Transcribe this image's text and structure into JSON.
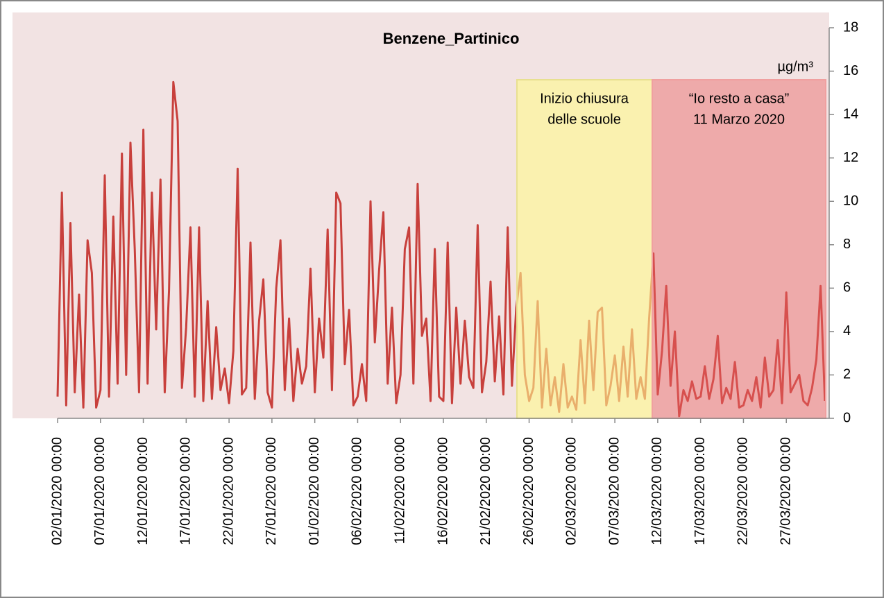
{
  "chart_data": {
    "type": "line",
    "title": "Benzene_Partinico",
    "y_label": "µg/m³",
    "color": "#c8403c",
    "annotations": [
      "Inizio chiusura",
      "delle scuole",
      "“Io resto a casa”",
      "11 Marzo 2020"
    ],
    "y_axis_side": "right",
    "grid": false,
    "ylim": [
      0,
      18
    ],
    "yticks": [
      0,
      2,
      4,
      6,
      8,
      10,
      12,
      14,
      16,
      18
    ],
    "categories": [
      "02/01/2020 00:00",
      null,
      null,
      null,
      null,
      null,
      null,
      null,
      null,
      null,
      "07/01/2020 00:00",
      null,
      null,
      null,
      null,
      null,
      null,
      null,
      null,
      null,
      "12/01/2020 00:00",
      null,
      null,
      null,
      null,
      null,
      null,
      null,
      null,
      null,
      "17/01/2020 00:00",
      null,
      null,
      null,
      null,
      null,
      null,
      null,
      null,
      null,
      "22/01/2020 00:00",
      null,
      null,
      null,
      null,
      null,
      null,
      null,
      null,
      null,
      "27/01/2020 00:00",
      null,
      null,
      null,
      null,
      null,
      null,
      null,
      null,
      null,
      "01/02/2020 00:00",
      null,
      null,
      null,
      null,
      null,
      null,
      null,
      null,
      null,
      "06/02/2020 00:00",
      null,
      null,
      null,
      null,
      null,
      null,
      null,
      null,
      null,
      "11/02/2020 00:00",
      null,
      null,
      null,
      null,
      null,
      null,
      null,
      null,
      null,
      "16/02/2020 00:00",
      null,
      null,
      null,
      null,
      null,
      null,
      null,
      null,
      null,
      "21/02/2020 00:00",
      null,
      null,
      null,
      null,
      null,
      null,
      null,
      null,
      null,
      "26/02/2020 00:00",
      null,
      null,
      null,
      null,
      null,
      null,
      null,
      null,
      null,
      "02/03/2020 00:00",
      null,
      null,
      null,
      null,
      null,
      null,
      null,
      null,
      null,
      "07/03/2020 00:00",
      null,
      null,
      null,
      null,
      null,
      null,
      null,
      null,
      null,
      "12/03/2020 00:00",
      null,
      null,
      null,
      null,
      null,
      null,
      null,
      null,
      null,
      "17/03/2020 00:00",
      null,
      null,
      null,
      null,
      null,
      null,
      null,
      null,
      null,
      "22/03/2020 00:00",
      null,
      null,
      null,
      null,
      null,
      null,
      null,
      null,
      null,
      "27/03/2020 00:00",
      null,
      null,
      null,
      null,
      null,
      null,
      null,
      null,
      null
    ],
    "values": [
      1.0,
      10.4,
      0.6,
      9.0,
      1.2,
      5.7,
      0.5,
      8.2,
      6.7,
      0.5,
      1.3,
      11.2,
      1.0,
      9.3,
      1.6,
      12.2,
      2.0,
      12.7,
      7.8,
      1.2,
      13.3,
      1.6,
      10.4,
      4.1,
      11.0,
      1.2,
      5.9,
      15.5,
      13.7,
      1.4,
      4.2,
      8.8,
      1.0,
      8.8,
      0.8,
      5.4,
      0.9,
      4.2,
      1.3,
      2.3,
      0.7,
      3.1,
      11.5,
      1.1,
      1.4,
      8.1,
      0.9,
      4.5,
      6.4,
      1.2,
      0.5,
      6.0,
      8.2,
      1.3,
      4.6,
      0.8,
      3.2,
      1.6,
      2.4,
      6.9,
      1.2,
      4.6,
      2.8,
      8.7,
      1.3,
      10.4,
      9.9,
      2.5,
      5.0,
      0.6,
      1.0,
      2.5,
      0.8,
      10.0,
      3.5,
      6.8,
      9.5,
      1.6,
      5.1,
      0.7,
      2.0,
      7.8,
      8.8,
      1.6,
      10.8,
      3.8,
      4.6,
      0.8,
      7.8,
      1.0,
      0.8,
      8.1,
      0.7,
      5.1,
      1.6,
      4.5,
      1.9,
      1.4,
      8.9,
      1.2,
      2.6,
      6.3,
      1.7,
      4.7,
      1.1,
      8.8,
      1.5,
      5.1,
      6.7,
      2.0,
      0.8,
      1.4,
      5.4,
      0.5,
      3.2,
      0.6,
      1.9,
      0.3,
      2.5,
      0.5,
      1.0,
      0.4,
      3.6,
      0.7,
      4.5,
      1.3,
      4.9,
      5.1,
      0.6,
      1.5,
      2.9,
      0.8,
      3.3,
      1.0,
      4.1,
      0.9,
      1.9,
      0.9,
      4.6,
      7.6,
      1.1,
      3.1,
      6.1,
      1.5,
      4.0,
      0.1,
      1.3,
      0.8,
      1.7,
      0.9,
      1.0,
      2.4,
      0.9,
      1.8,
      3.8,
      0.7,
      1.4,
      0.9,
      2.6,
      0.5,
      0.6,
      1.3,
      0.8,
      1.9,
      0.5,
      2.8,
      1.0,
      1.3,
      3.6,
      0.7,
      5.8,
      1.2,
      1.6,
      2.0,
      0.8,
      0.6,
      1.4,
      2.7,
      6.1,
      0.8
    ]
  }
}
